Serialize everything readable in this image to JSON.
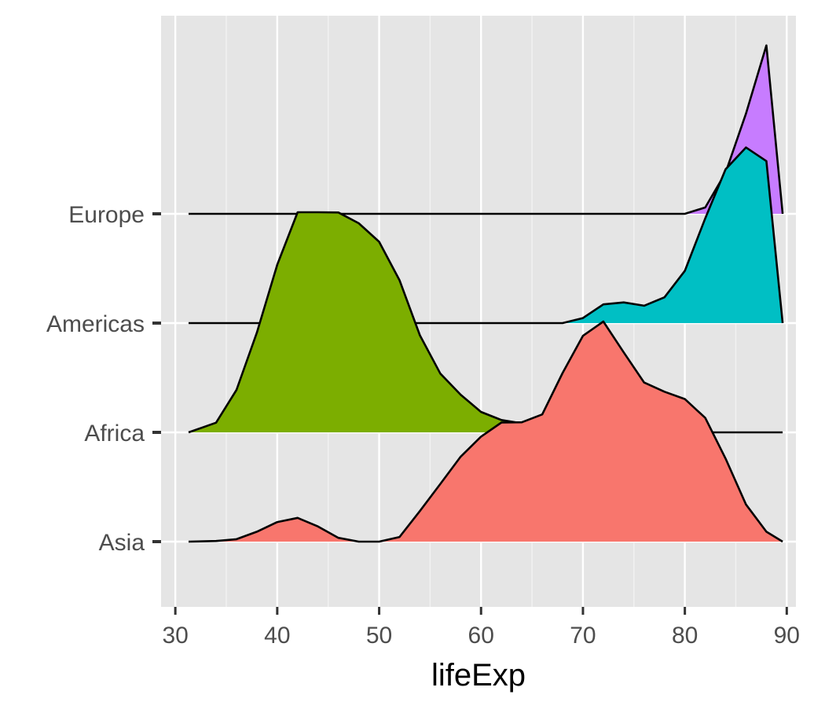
{
  "chart_data": {
    "type": "ridgeline",
    "title": "",
    "xlabel": "lifeExp",
    "ylabel": "",
    "xlim": [
      28.6,
      90.9
    ],
    "x_ticks": [
      "30",
      "40",
      "50",
      "60",
      "70",
      "80",
      "90"
    ],
    "x_tick_values": [
      30,
      40,
      50,
      60,
      70,
      80,
      90
    ],
    "categories": [
      "Asia",
      "Africa",
      "Americas",
      "Europe"
    ],
    "x": [
      31.3,
      34,
      36,
      38,
      40,
      42,
      44,
      46,
      48,
      50,
      52,
      54,
      56,
      58,
      60,
      62,
      64,
      66,
      68,
      70,
      72,
      74,
      76,
      78,
      80,
      82,
      84,
      86,
      88,
      89.6
    ],
    "series": [
      {
        "name": "Asia",
        "color": "#F8766D",
        "values": [
          0.0,
          0.003,
          0.011,
          0.045,
          0.089,
          0.108,
          0.069,
          0.017,
          0.0,
          0.0,
          0.021,
          0.139,
          0.262,
          0.386,
          0.477,
          0.541,
          0.542,
          0.578,
          0.766,
          0.935,
          1.0,
          0.86,
          0.723,
          0.681,
          0.648,
          0.562,
          0.377,
          0.169,
          0.045,
          0.0
        ]
      },
      {
        "name": "Africa",
        "color": "#7CAE00",
        "values": [
          0.0,
          0.044,
          0.193,
          0.453,
          0.762,
          1.0,
          1.0,
          0.999,
          0.95,
          0.866,
          0.691,
          0.441,
          0.267,
          0.171,
          0.093,
          0.056,
          0.041,
          0.029,
          0.015,
          0.008,
          0.003,
          0.0,
          0.0,
          0.0,
          0.0,
          0.0,
          0.0,
          0.0,
          0.0,
          0.0
        ]
      },
      {
        "name": "Americas",
        "color": "#00BFC4",
        "values": [
          0.0,
          0.0,
          0.0,
          0.0,
          0.0,
          0.0,
          0.0,
          0.0,
          0.0,
          0.0,
          0.0,
          0.0,
          0.0,
          0.0,
          0.0,
          0.0,
          0.0,
          0.0,
          0.0,
          0.023,
          0.085,
          0.094,
          0.079,
          0.117,
          0.237,
          0.476,
          0.699,
          0.798,
          0.736,
          0.0
        ]
      },
      {
        "name": "Europe",
        "color": "#C77CFF",
        "values": [
          0.0,
          0.0,
          0.0,
          0.0,
          0.0,
          0.0,
          0.0,
          0.0,
          0.0,
          0.0,
          0.0,
          0.0,
          0.0,
          0.0,
          0.0,
          0.0,
          0.0,
          0.0,
          0.0,
          0.0,
          0.0,
          0.0,
          0.0,
          0.0,
          0.0,
          0.029,
          0.187,
          0.455,
          0.765,
          0.0
        ]
      }
    ],
    "grid": true,
    "legend": "none"
  }
}
